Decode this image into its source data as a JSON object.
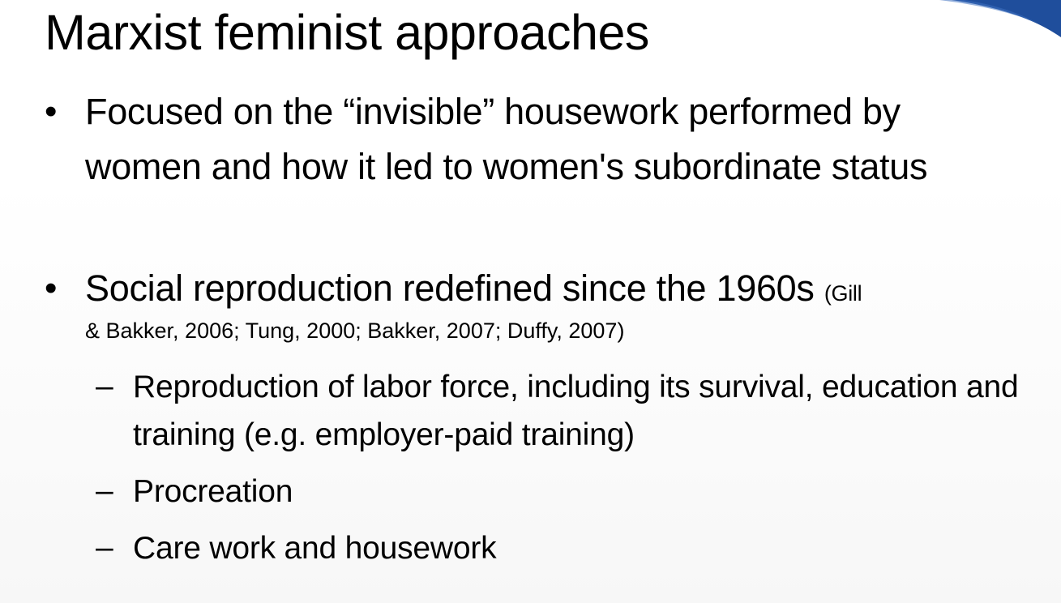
{
  "slide": {
    "title": "Marxist feminist approaches",
    "accent_color": "#1f4e9c",
    "bullets": [
      {
        "marker": "•",
        "text": "Focused on the “invisible” housework performed by women and how it led to women's subordinate status"
      },
      {
        "marker": "•",
        "text": "Social reproduction redefined since the 1960s ",
        "citation_part1": "(Gill",
        "citation_part2": "& Bakker, 2006; Tung, 2000; Bakker, 2007; Duffy, 2007)",
        "subitems": [
          {
            "marker": "–",
            "text": "Reproduction of labor force, including its survival, education and training (e.g. employer-paid training)"
          },
          {
            "marker": "–",
            "text": "Procreation"
          },
          {
            "marker": "–",
            "text": "Care work and housework"
          }
        ]
      }
    ]
  }
}
